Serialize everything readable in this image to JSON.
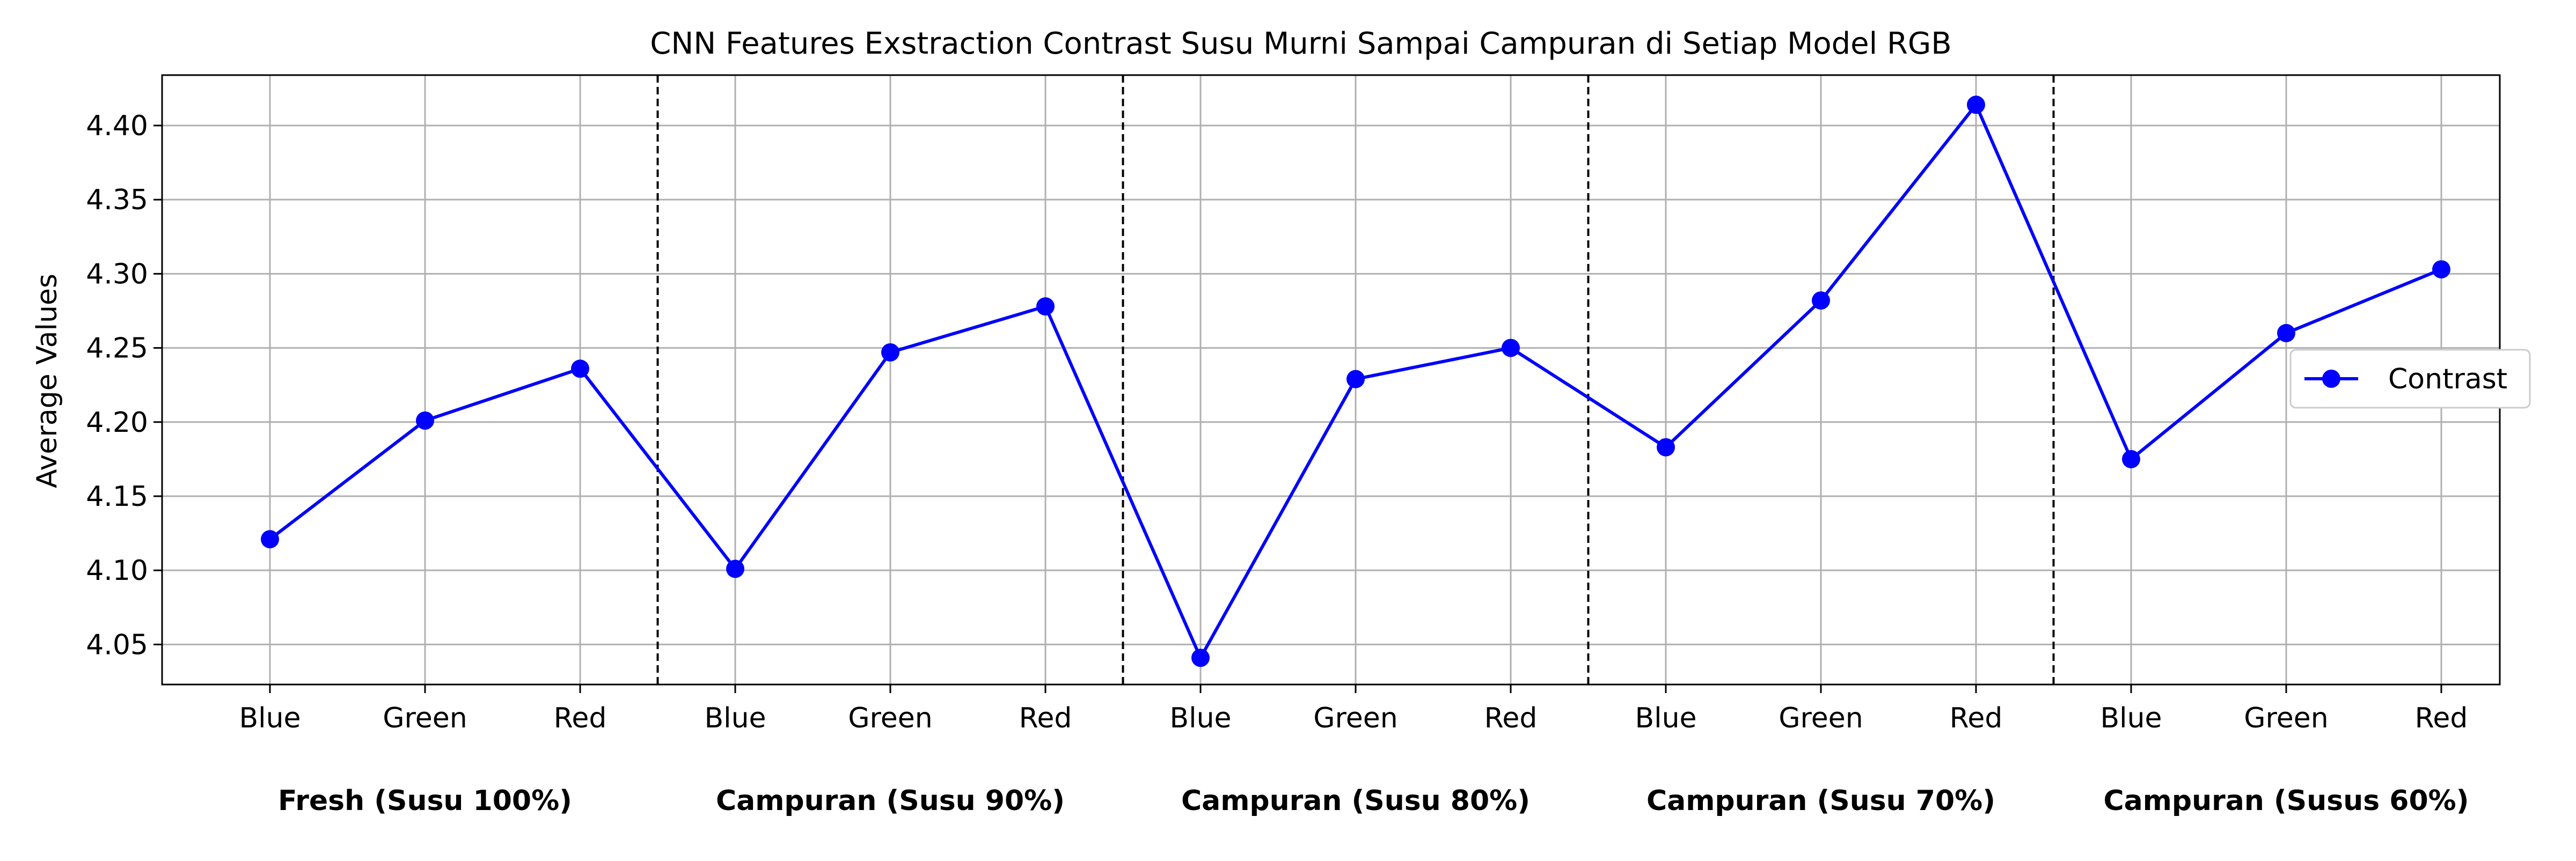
{
  "chart_data": {
    "type": "line",
    "title": "CNN Features Exstraction Contrast Susu Murni Sampai Campuran di Setiap Model RGB",
    "xlabel": "",
    "ylabel": "Average Values",
    "categories": [
      "Blue",
      "Green",
      "Red",
      "Blue",
      "Green",
      "Red",
      "Blue",
      "Green",
      "Red",
      "Blue",
      "Green",
      "Red",
      "Blue",
      "Green",
      "Red"
    ],
    "groups": [
      {
        "label": "Fresh (Susu 100%)",
        "start": 0,
        "end": 2
      },
      {
        "label": "Campuran (Susu 90%)",
        "start": 3,
        "end": 5
      },
      {
        "label": "Campuran (Susu 80%)",
        "start": 6,
        "end": 8
      },
      {
        "label": "Campuran (Susu 70%)",
        "start": 9,
        "end": 11
      },
      {
        "label": "Campuran (Susus 60%)",
        "start": 12,
        "end": 14
      }
    ],
    "series": [
      {
        "name": "Contrast",
        "color": "#0000ff",
        "values": [
          4.121,
          4.201,
          4.236,
          4.101,
          4.247,
          4.278,
          4.041,
          4.229,
          4.25,
          4.183,
          4.282,
          4.414,
          4.175,
          4.26,
          4.303
        ]
      }
    ],
    "ylim": [
      4.023,
      4.434
    ],
    "yticks": [
      4.05,
      4.1,
      4.15,
      4.2,
      4.25,
      4.3,
      4.35,
      4.4
    ],
    "ytick_labels": [
      "4.05",
      "4.10",
      "4.15",
      "4.20",
      "4.25",
      "4.30",
      "4.35",
      "4.40"
    ],
    "group_separators_after": [
      2,
      5,
      8,
      11
    ],
    "grid": true,
    "legend_position": "right"
  }
}
